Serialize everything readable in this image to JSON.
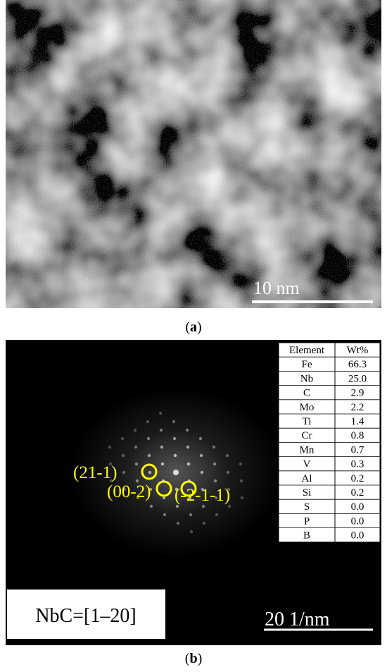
{
  "panel_a": {
    "scale_bar": "10 nm",
    "caption_open": "(",
    "caption_letter": "a",
    "caption_close": ")"
  },
  "panel_b": {
    "zone_axis": "NbC=[1–20]",
    "scale_bar": "20 1/nm",
    "spot_labels": [
      "(21-1)",
      "(00-2)",
      "(-2-1-1)"
    ],
    "caption_open": "(",
    "caption_letter": "b",
    "caption_close": ")",
    "table": {
      "header": [
        "Element",
        "Wt%"
      ],
      "rows": [
        [
          "Fe",
          "66.3"
        ],
        [
          "Nb",
          "25.0"
        ],
        [
          "C",
          "2.9"
        ],
        [
          "Mo",
          "2.2"
        ],
        [
          "Ti",
          "1.4"
        ],
        [
          "Cr",
          "0.8"
        ],
        [
          "Mn",
          "0.7"
        ],
        [
          "V",
          "0.3"
        ],
        [
          "Al",
          "0.2"
        ],
        [
          "Si",
          "0.2"
        ],
        [
          "S",
          "0.0"
        ],
        [
          "P",
          "0.0"
        ],
        [
          "B",
          "0.0"
        ]
      ]
    }
  }
}
